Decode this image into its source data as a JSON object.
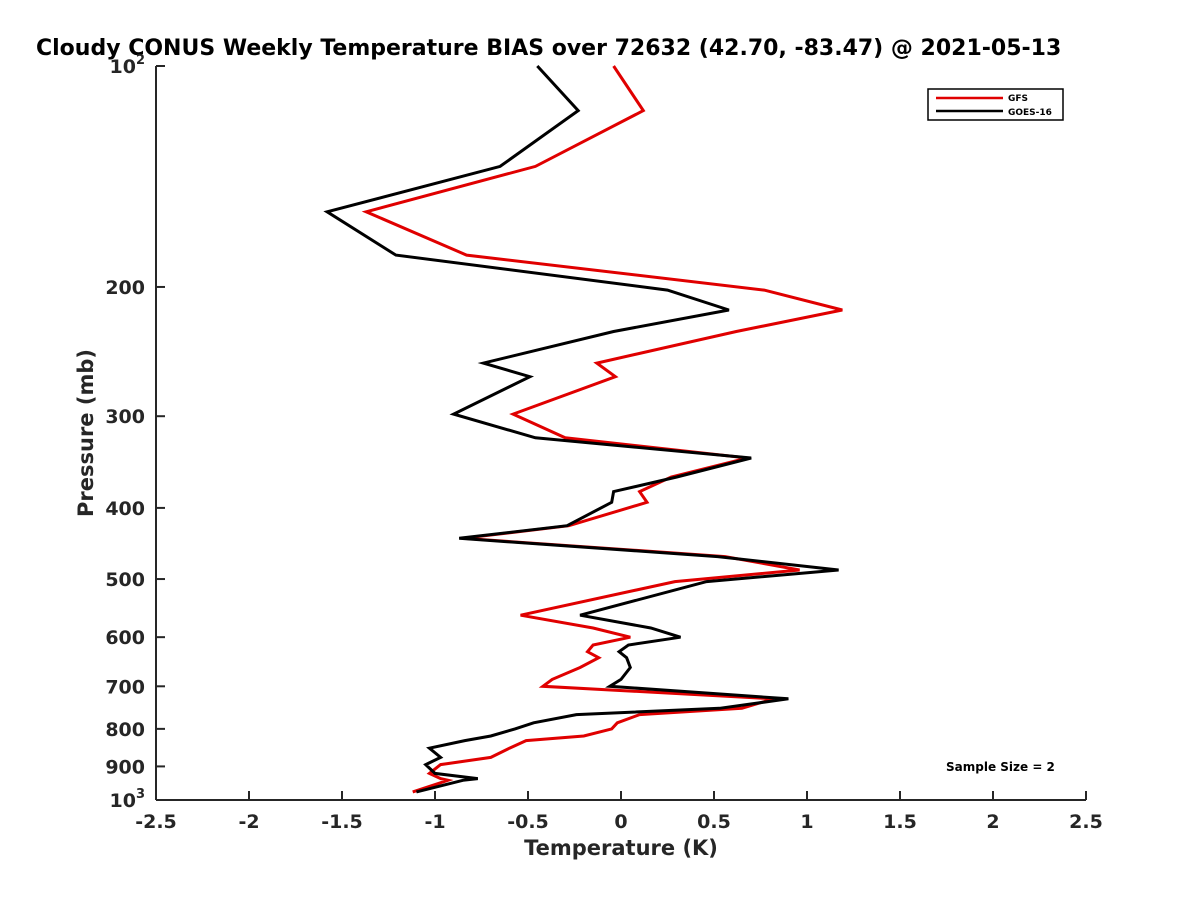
{
  "chart_data": {
    "type": "line",
    "title": "Cloudy CONUS Weekly Temperature BIAS over 72632 (42.70, -83.47) @ 2021-05-13",
    "xlabel": "Temperature (K)",
    "ylabel": "Pressure (mb)",
    "xlim": [
      -2.5,
      2.5
    ],
    "ylim": [
      100,
      1000
    ],
    "y_scale": "log",
    "y_reversed": true,
    "grid": false,
    "legend_position": "top-right",
    "x_ticks": [
      "-2.5",
      "-2",
      "-1.5",
      "-1",
      "-0.5",
      "0",
      "0.5",
      "1",
      "1.5",
      "2",
      "2.5"
    ],
    "y_ticks": [
      {
        "value": 100,
        "base": "10",
        "exp": "2"
      },
      {
        "value": 200,
        "label": "200"
      },
      {
        "value": 300,
        "label": "300"
      },
      {
        "value": 400,
        "label": "400"
      },
      {
        "value": 500,
        "label": "500"
      },
      {
        "value": 600,
        "label": "600"
      },
      {
        "value": 700,
        "label": "700"
      },
      {
        "value": 800,
        "label": "800"
      },
      {
        "value": 900,
        "label": "900"
      },
      {
        "value": 1000,
        "base": "10",
        "exp": "3"
      }
    ],
    "annotation": "Sample Size = 2",
    "series": [
      {
        "name": "GFS",
        "color": "#e00000",
        "points": [
          [
            -0.04,
            100
          ],
          [
            0.12,
            115
          ],
          [
            -0.46,
            137
          ],
          [
            -1.37,
            158
          ],
          [
            -0.83,
            181
          ],
          [
            0.77,
            202
          ],
          [
            1.19,
            215
          ],
          [
            0.62,
            230
          ],
          [
            -0.13,
            254
          ],
          [
            -0.03,
            265
          ],
          [
            -0.58,
            298
          ],
          [
            -0.3,
            321
          ],
          [
            0.68,
            342
          ],
          [
            0.27,
            363
          ],
          [
            0.1,
            380
          ],
          [
            0.14,
            393
          ],
          [
            -0.28,
            423
          ],
          [
            -0.85,
            440
          ],
          [
            0.56,
            466
          ],
          [
            0.96,
            486
          ],
          [
            0.29,
            504
          ],
          [
            -0.54,
            560
          ],
          [
            -0.15,
            583
          ],
          [
            0.05,
            600
          ],
          [
            -0.15,
            615
          ],
          [
            -0.18,
            628
          ],
          [
            -0.12,
            640
          ],
          [
            -0.22,
            660
          ],
          [
            -0.37,
            685
          ],
          [
            -0.42,
            700
          ],
          [
            0.82,
            728
          ],
          [
            0.65,
            750
          ],
          [
            0.1,
            765
          ],
          [
            -0.02,
            785
          ],
          [
            -0.05,
            800
          ],
          [
            -0.2,
            818
          ],
          [
            -0.51,
            830
          ],
          [
            -0.6,
            850
          ],
          [
            -0.7,
            875
          ],
          [
            -0.97,
            895
          ],
          [
            -1.03,
            920
          ],
          [
            -0.97,
            935
          ],
          [
            -0.93,
            940
          ],
          [
            -1.12,
            975
          ]
        ]
      },
      {
        "name": "GOES-16",
        "color": "#000000",
        "points": [
          [
            -0.45,
            100
          ],
          [
            -0.23,
            115
          ],
          [
            -0.65,
            137
          ],
          [
            -1.58,
            158
          ],
          [
            -1.21,
            181
          ],
          [
            0.25,
            202
          ],
          [
            0.58,
            215
          ],
          [
            -0.04,
            230
          ],
          [
            -0.74,
            254
          ],
          [
            -0.49,
            265
          ],
          [
            -0.9,
            298
          ],
          [
            -0.46,
            321
          ],
          [
            0.7,
            342
          ],
          [
            0.3,
            363
          ],
          [
            -0.04,
            380
          ],
          [
            -0.05,
            393
          ],
          [
            -0.29,
            423
          ],
          [
            -0.87,
            440
          ],
          [
            0.52,
            466
          ],
          [
            1.17,
            486
          ],
          [
            0.46,
            504
          ],
          [
            -0.22,
            560
          ],
          [
            0.16,
            583
          ],
          [
            0.32,
            600
          ],
          [
            0.04,
            615
          ],
          [
            -0.01,
            628
          ],
          [
            0.03,
            640
          ],
          [
            0.05,
            660
          ],
          [
            0.0,
            685
          ],
          [
            -0.06,
            700
          ],
          [
            0.9,
            728
          ],
          [
            0.53,
            750
          ],
          [
            -0.24,
            765
          ],
          [
            -0.47,
            785
          ],
          [
            -0.57,
            800
          ],
          [
            -0.7,
            818
          ],
          [
            -0.84,
            830
          ],
          [
            -1.03,
            850
          ],
          [
            -0.97,
            875
          ],
          [
            -1.05,
            895
          ],
          [
            -1.0,
            920
          ],
          [
            -0.77,
            935
          ],
          [
            -0.85,
            940
          ],
          [
            -1.1,
            975
          ]
        ]
      }
    ]
  }
}
